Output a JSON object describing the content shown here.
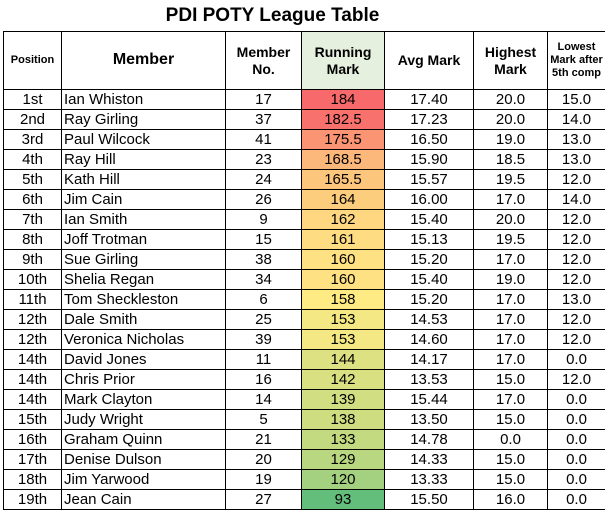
{
  "title": "PDI POTY League Table",
  "headers": {
    "position": "Position",
    "member": "Member",
    "member_no": "Member No.",
    "running_mark": "Running Mark",
    "avg_mark": "Avg Mark",
    "highest_mark": "Highest Mark",
    "lowest_mark": "Lowest Mark after 5th comp"
  },
  "heat_colors": {
    "high": "#f8696b",
    "mid": "#ffeb84",
    "low": "#63be7b"
  },
  "rows": [
    {
      "position": "1st",
      "member": "Ian Whiston",
      "member_no": "17",
      "running_mark": "184",
      "avg_mark": "17.40",
      "highest_mark": "20.0",
      "lowest_mark": "15.0"
    },
    {
      "position": "2nd",
      "member": "Ray Girling",
      "member_no": "37",
      "running_mark": "182.5",
      "avg_mark": "17.23",
      "highest_mark": "20.0",
      "lowest_mark": "14.0"
    },
    {
      "position": "3rd",
      "member": "Paul Wilcock",
      "member_no": "41",
      "running_mark": "175.5",
      "avg_mark": "16.50",
      "highest_mark": "19.0",
      "lowest_mark": "13.0"
    },
    {
      "position": "4th",
      "member": "Ray Hill",
      "member_no": "23",
      "running_mark": "168.5",
      "avg_mark": "15.90",
      "highest_mark": "18.5",
      "lowest_mark": "13.0"
    },
    {
      "position": "5th",
      "member": "Kath Hill",
      "member_no": "24",
      "running_mark": "165.5",
      "avg_mark": "15.57",
      "highest_mark": "19.5",
      "lowest_mark": "12.0"
    },
    {
      "position": "6th",
      "member": "Jim Cain",
      "member_no": "26",
      "running_mark": "164",
      "avg_mark": "16.00",
      "highest_mark": "17.0",
      "lowest_mark": "14.0"
    },
    {
      "position": "7th",
      "member": "Ian Smith",
      "member_no": "9",
      "running_mark": "162",
      "avg_mark": "15.40",
      "highest_mark": "20.0",
      "lowest_mark": "12.0"
    },
    {
      "position": "8th",
      "member": "Joff Trotman",
      "member_no": "15",
      "running_mark": "161",
      "avg_mark": "15.13",
      "highest_mark": "19.5",
      "lowest_mark": "12.0"
    },
    {
      "position": "9th",
      "member": "Sue Girling",
      "member_no": "38",
      "running_mark": "160",
      "avg_mark": "15.20",
      "highest_mark": "17.0",
      "lowest_mark": "12.0"
    },
    {
      "position": "10th",
      "member": "Shelia Regan",
      "member_no": "34",
      "running_mark": "160",
      "avg_mark": "15.40",
      "highest_mark": "19.0",
      "lowest_mark": "12.0"
    },
    {
      "position": "11th",
      "member": "Tom Sheckleston",
      "member_no": "6",
      "running_mark": "158",
      "avg_mark": "15.20",
      "highest_mark": "17.0",
      "lowest_mark": "13.0"
    },
    {
      "position": "12th",
      "member": "Dale Smith",
      "member_no": "25",
      "running_mark": "153",
      "avg_mark": "14.53",
      "highest_mark": "17.0",
      "lowest_mark": "12.0"
    },
    {
      "position": "12th",
      "member": "Veronica Nicholas",
      "member_no": "39",
      "running_mark": "153",
      "avg_mark": "14.60",
      "highest_mark": "17.0",
      "lowest_mark": "12.0"
    },
    {
      "position": "14th",
      "member": "David Jones",
      "member_no": "11",
      "running_mark": "144",
      "avg_mark": "14.17",
      "highest_mark": "17.0",
      "lowest_mark": "0.0"
    },
    {
      "position": "14th",
      "member": "Chris Prior",
      "member_no": "16",
      "running_mark": "142",
      "avg_mark": "13.53",
      "highest_mark": "15.0",
      "lowest_mark": "12.0"
    },
    {
      "position": "14th",
      "member": "Mark Clayton",
      "member_no": "14",
      "running_mark": "139",
      "avg_mark": "15.44",
      "highest_mark": "17.0",
      "lowest_mark": "0.0"
    },
    {
      "position": "15th",
      "member": "Judy Wright",
      "member_no": "5",
      "running_mark": "138",
      "avg_mark": "13.50",
      "highest_mark": "15.0",
      "lowest_mark": "0.0"
    },
    {
      "position": "16th",
      "member": "Graham Quinn",
      "member_no": "21",
      "running_mark": "133",
      "avg_mark": "14.78",
      "highest_mark": "0.0",
      "lowest_mark": "0.0"
    },
    {
      "position": "17th",
      "member": "Denise Dulson",
      "member_no": "20",
      "running_mark": "129",
      "avg_mark": "14.33",
      "highest_mark": "15.0",
      "lowest_mark": "0.0"
    },
    {
      "position": "18th",
      "member": "Jim Yarwood",
      "member_no": "19",
      "running_mark": "120",
      "avg_mark": "13.33",
      "highest_mark": "15.0",
      "lowest_mark": "0.0"
    },
    {
      "position": "19th",
      "member": "Jean Cain",
      "member_no": "27",
      "running_mark": "93",
      "avg_mark": "15.50",
      "highest_mark": "16.0",
      "lowest_mark": "0.0"
    }
  ]
}
